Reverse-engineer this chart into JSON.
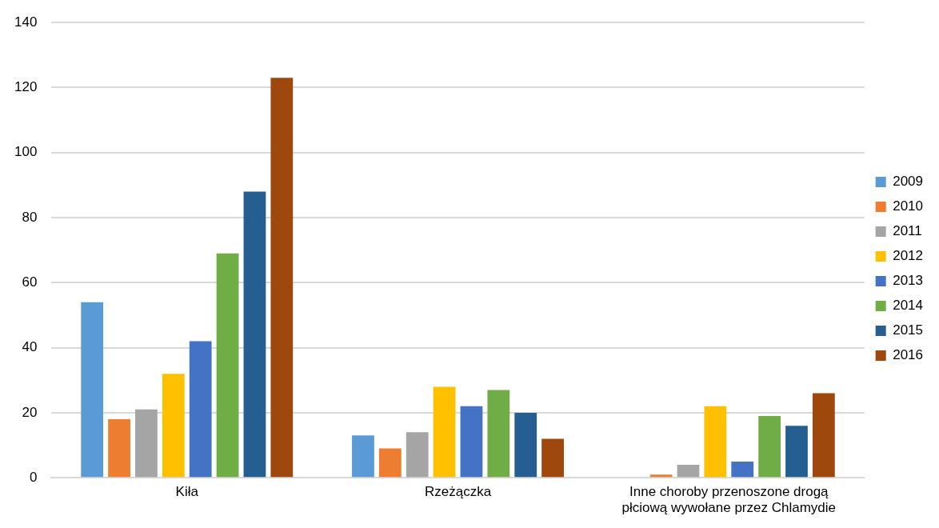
{
  "chart_data": {
    "type": "bar",
    "categories": [
      "Kiła",
      "Rzeżączka",
      "Inne choroby przenoszone drogą płciową wywołane przez Chlamydie"
    ],
    "series": [
      {
        "name": "2009",
        "color": "#5b9bd5",
        "values": [
          54,
          13,
          0
        ]
      },
      {
        "name": "2010",
        "color": "#ed7d31",
        "values": [
          18,
          9,
          1
        ]
      },
      {
        "name": "2011",
        "color": "#a5a5a5",
        "values": [
          21,
          14,
          4
        ]
      },
      {
        "name": "2012",
        "color": "#ffc000",
        "values": [
          32,
          28,
          22
        ]
      },
      {
        "name": "2013",
        "color": "#4472c4",
        "values": [
          42,
          22,
          5
        ]
      },
      {
        "name": "2014",
        "color": "#70ad47",
        "values": [
          69,
          27,
          19
        ]
      },
      {
        "name": "2015",
        "color": "#255e91",
        "values": [
          88,
          20,
          16
        ]
      },
      {
        "name": "2016",
        "color": "#9e480e",
        "values": [
          123,
          12,
          26
        ]
      }
    ],
    "ylim": [
      0,
      140
    ],
    "yticks": [
      0,
      20,
      40,
      60,
      80,
      100,
      120,
      140
    ],
    "grid": "y",
    "legend": "right"
  }
}
